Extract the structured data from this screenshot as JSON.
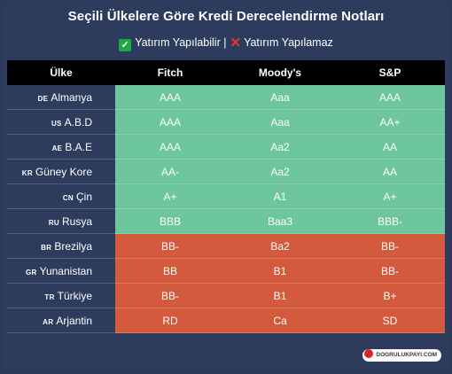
{
  "title": "Seçili Ülkelere Göre Kredi Derecelendirme Notları",
  "legend": {
    "good_icon": "check-icon",
    "good_label": "Yatırım Yapılabilir |",
    "bad_icon": "cross-icon",
    "bad_label": "Yatırım Yapılamaz"
  },
  "headers": [
    "Ülke",
    "Fitch",
    "Moody's",
    "S&P"
  ],
  "colors": {
    "good": "#6dc69c",
    "bad": "#d35a3c",
    "background": "#2d3c5c"
  },
  "rows": [
    {
      "code": "DE",
      "country": "Almanya",
      "fitch": "AAA",
      "moodys": "Aaa",
      "sp": "AAA",
      "status": "good"
    },
    {
      "code": "US",
      "country": "A.B.D",
      "fitch": "AAA",
      "moodys": "Aaa",
      "sp": "AA+",
      "status": "good"
    },
    {
      "code": "AE",
      "country": "B.A.E",
      "fitch": "AAA",
      "moodys": "Aa2",
      "sp": "AA",
      "status": "good"
    },
    {
      "code": "KR",
      "country": "Güney Kore",
      "fitch": "AA-",
      "moodys": "Aa2",
      "sp": "AA",
      "status": "good"
    },
    {
      "code": "CN",
      "country": "Çin",
      "fitch": "A+",
      "moodys": "A1",
      "sp": "A+",
      "status": "good"
    },
    {
      "code": "RU",
      "country": "Rusya",
      "fitch": "BBB",
      "moodys": "Baa3",
      "sp": "BBB-",
      "status": "good"
    },
    {
      "code": "BR",
      "country": "Brezilya",
      "fitch": "BB-",
      "moodys": "Ba2",
      "sp": "BB-",
      "status": "bad"
    },
    {
      "code": "GR",
      "country": "Yunanistan",
      "fitch": "BB",
      "moodys": "B1",
      "sp": "BB-",
      "status": "bad"
    },
    {
      "code": "TR",
      "country": "Türkiye",
      "fitch": "BB-",
      "moodys": "B1",
      "sp": "B+",
      "status": "bad"
    },
    {
      "code": "AR",
      "country": "Arjantin",
      "fitch": "RD",
      "moodys": "Ca",
      "sp": "SD",
      "status": "bad"
    }
  ],
  "brand": "DOGRULUKPAYI.COM"
}
